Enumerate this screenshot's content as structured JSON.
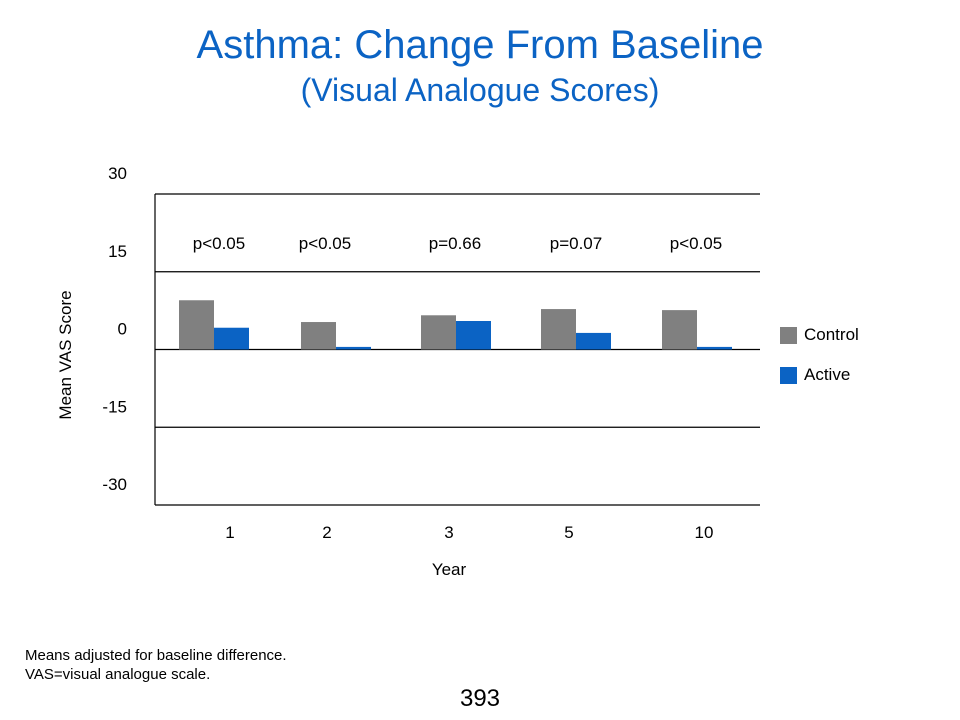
{
  "slide": {
    "title": "Asthma: Change From Baseline",
    "subtitle": "(Visual Analogue Scores)",
    "footnotes": [
      "Means adjusted for baseline difference.",
      "VAS=visual analogue scale."
    ],
    "page_number": "393"
  },
  "colors": {
    "title": "#0b63c4",
    "control": "#808080",
    "active": "#0b63c4"
  },
  "chart_data": {
    "type": "bar",
    "categories": [
      "1",
      "2",
      "3",
      "5",
      "10"
    ],
    "series": [
      {
        "name": "Control",
        "values": [
          9.5,
          5.3,
          6.6,
          7.8,
          7.6
        ]
      },
      {
        "name": "Active",
        "values": [
          4.2,
          0.5,
          5.5,
          3.2,
          0.5
        ]
      }
    ],
    "annotations": [
      "p<0.05",
      "p<0.05",
      "p=0.66",
      "p=0.07",
      "p<0.05"
    ],
    "xlabel": "Year",
    "ylabel": "Mean VAS Score",
    "ylim": [
      -30,
      30
    ],
    "yticks": [
      30,
      15,
      0,
      -15,
      -30
    ],
    "grid": true,
    "legend": "right"
  }
}
